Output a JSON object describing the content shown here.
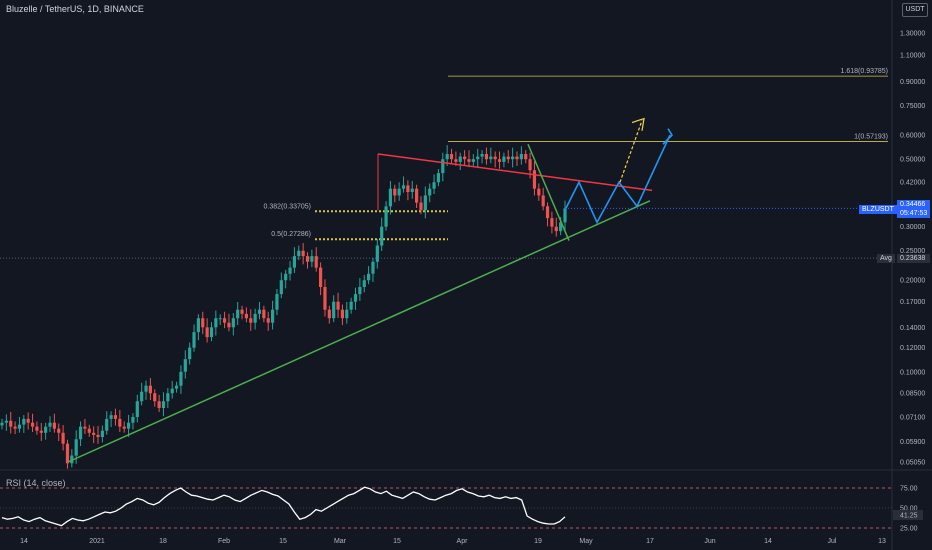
{
  "header": {
    "title": "Bluzelle / TetherUS, 1D, BINANCE",
    "currency": "USDT"
  },
  "rsi": {
    "title": "RSI (14, close)",
    "levels": [
      "75.00",
      "50.00",
      "41.25",
      "25.00"
    ]
  },
  "badges": {
    "price_symbol": "BLZUSDT",
    "price_value": "0.34466",
    "countdown": "05:47:53",
    "avg_label": "Avg",
    "avg_value": "0.23638"
  },
  "colors": {
    "up": "#26a69a",
    "down": "#ef5350",
    "resistance": "#f23645",
    "support": "#4caf50",
    "fib": "#d4c14a",
    "projection_blue": "#2196f3",
    "projection_yellow": "#f5d742",
    "rsi_line": "#ffffff"
  },
  "chart_data": {
    "type": "candlestick",
    "y_scale": "log",
    "y_ticks": [
      "1.30000",
      "1.10000",
      "0.90000",
      "0.75000",
      "0.60000",
      "0.50000",
      "0.42000",
      "0.36000",
      "0.30000",
      "0.25000",
      "0.20000",
      "0.17000",
      "0.14000",
      "0.12000",
      "0.10000",
      "0.08500",
      "0.07100",
      "0.05900",
      "0.05050"
    ],
    "x_ticks": [
      "14",
      "2021",
      "18",
      "Feb",
      "15",
      "Mar",
      "15",
      "Apr",
      "19",
      "May",
      "17",
      "Jun",
      "14",
      "Jul",
      "13"
    ],
    "fib_levels": [
      {
        "label": "1.618(0.93785)",
        "value": 0.93785
      },
      {
        "label": "1(0.57193)",
        "value": 0.57193
      },
      {
        "label": "0.382(0.33705)",
        "value": 0.33705
      },
      {
        "label": "0.5(0.27286)",
        "value": 0.27286
      }
    ],
    "last_price": 0.34466,
    "avg_price": 0.23638,
    "close_series": [
      0.068,
      0.069,
      0.066,
      0.065,
      0.067,
      0.07,
      0.068,
      0.066,
      0.064,
      0.063,
      0.066,
      0.068,
      0.065,
      0.063,
      0.058,
      0.05,
      0.053,
      0.06,
      0.066,
      0.065,
      0.063,
      0.062,
      0.061,
      0.064,
      0.07,
      0.072,
      0.07,
      0.066,
      0.065,
      0.068,
      0.071,
      0.08,
      0.086,
      0.09,
      0.085,
      0.08,
      0.076,
      0.08,
      0.085,
      0.088,
      0.09,
      0.1,
      0.11,
      0.12,
      0.135,
      0.15,
      0.14,
      0.13,
      0.14,
      0.15,
      0.15,
      0.145,
      0.14,
      0.15,
      0.16,
      0.155,
      0.15,
      0.145,
      0.155,
      0.16,
      0.15,
      0.145,
      0.16,
      0.18,
      0.2,
      0.21,
      0.22,
      0.24,
      0.25,
      0.24,
      0.23,
      0.24,
      0.22,
      0.19,
      0.16,
      0.15,
      0.17,
      0.16,
      0.15,
      0.16,
      0.17,
      0.18,
      0.19,
      0.2,
      0.21,
      0.23,
      0.26,
      0.3,
      0.35,
      0.4,
      0.38,
      0.4,
      0.41,
      0.39,
      0.4,
      0.36,
      0.34,
      0.38,
      0.4,
      0.42,
      0.45,
      0.5,
      0.52,
      0.5,
      0.49,
      0.51,
      0.5,
      0.49,
      0.5,
      0.51,
      0.52,
      0.5,
      0.51,
      0.5,
      0.49,
      0.51,
      0.5,
      0.51,
      0.5,
      0.52,
      0.5,
      0.46,
      0.4,
      0.38,
      0.35,
      0.32,
      0.3,
      0.29,
      0.31,
      0.34466
    ],
    "rsi_series": [
      38,
      36,
      37,
      39,
      35,
      33,
      36,
      38,
      34,
      32,
      30,
      28,
      33,
      37,
      35,
      34,
      36,
      39,
      42,
      45,
      44,
      46,
      50,
      55,
      58,
      62,
      60,
      56,
      54,
      57,
      63,
      68,
      72,
      75,
      70,
      66,
      65,
      63,
      61,
      60,
      63,
      66,
      64,
      60,
      58,
      62,
      66,
      69,
      72,
      70,
      67,
      65,
      60,
      55,
      45,
      36,
      38,
      42,
      48,
      46,
      50,
      54,
      58,
      62,
      66,
      68,
      72,
      76,
      74,
      70,
      68,
      71,
      66,
      64,
      62,
      66,
      70,
      68,
      64,
      61,
      60,
      63,
      66,
      68,
      72,
      74,
      70,
      68,
      65,
      64,
      66,
      63,
      62,
      64,
      62,
      63,
      60,
      40,
      36,
      33,
      31,
      30,
      30,
      33,
      39
    ]
  }
}
